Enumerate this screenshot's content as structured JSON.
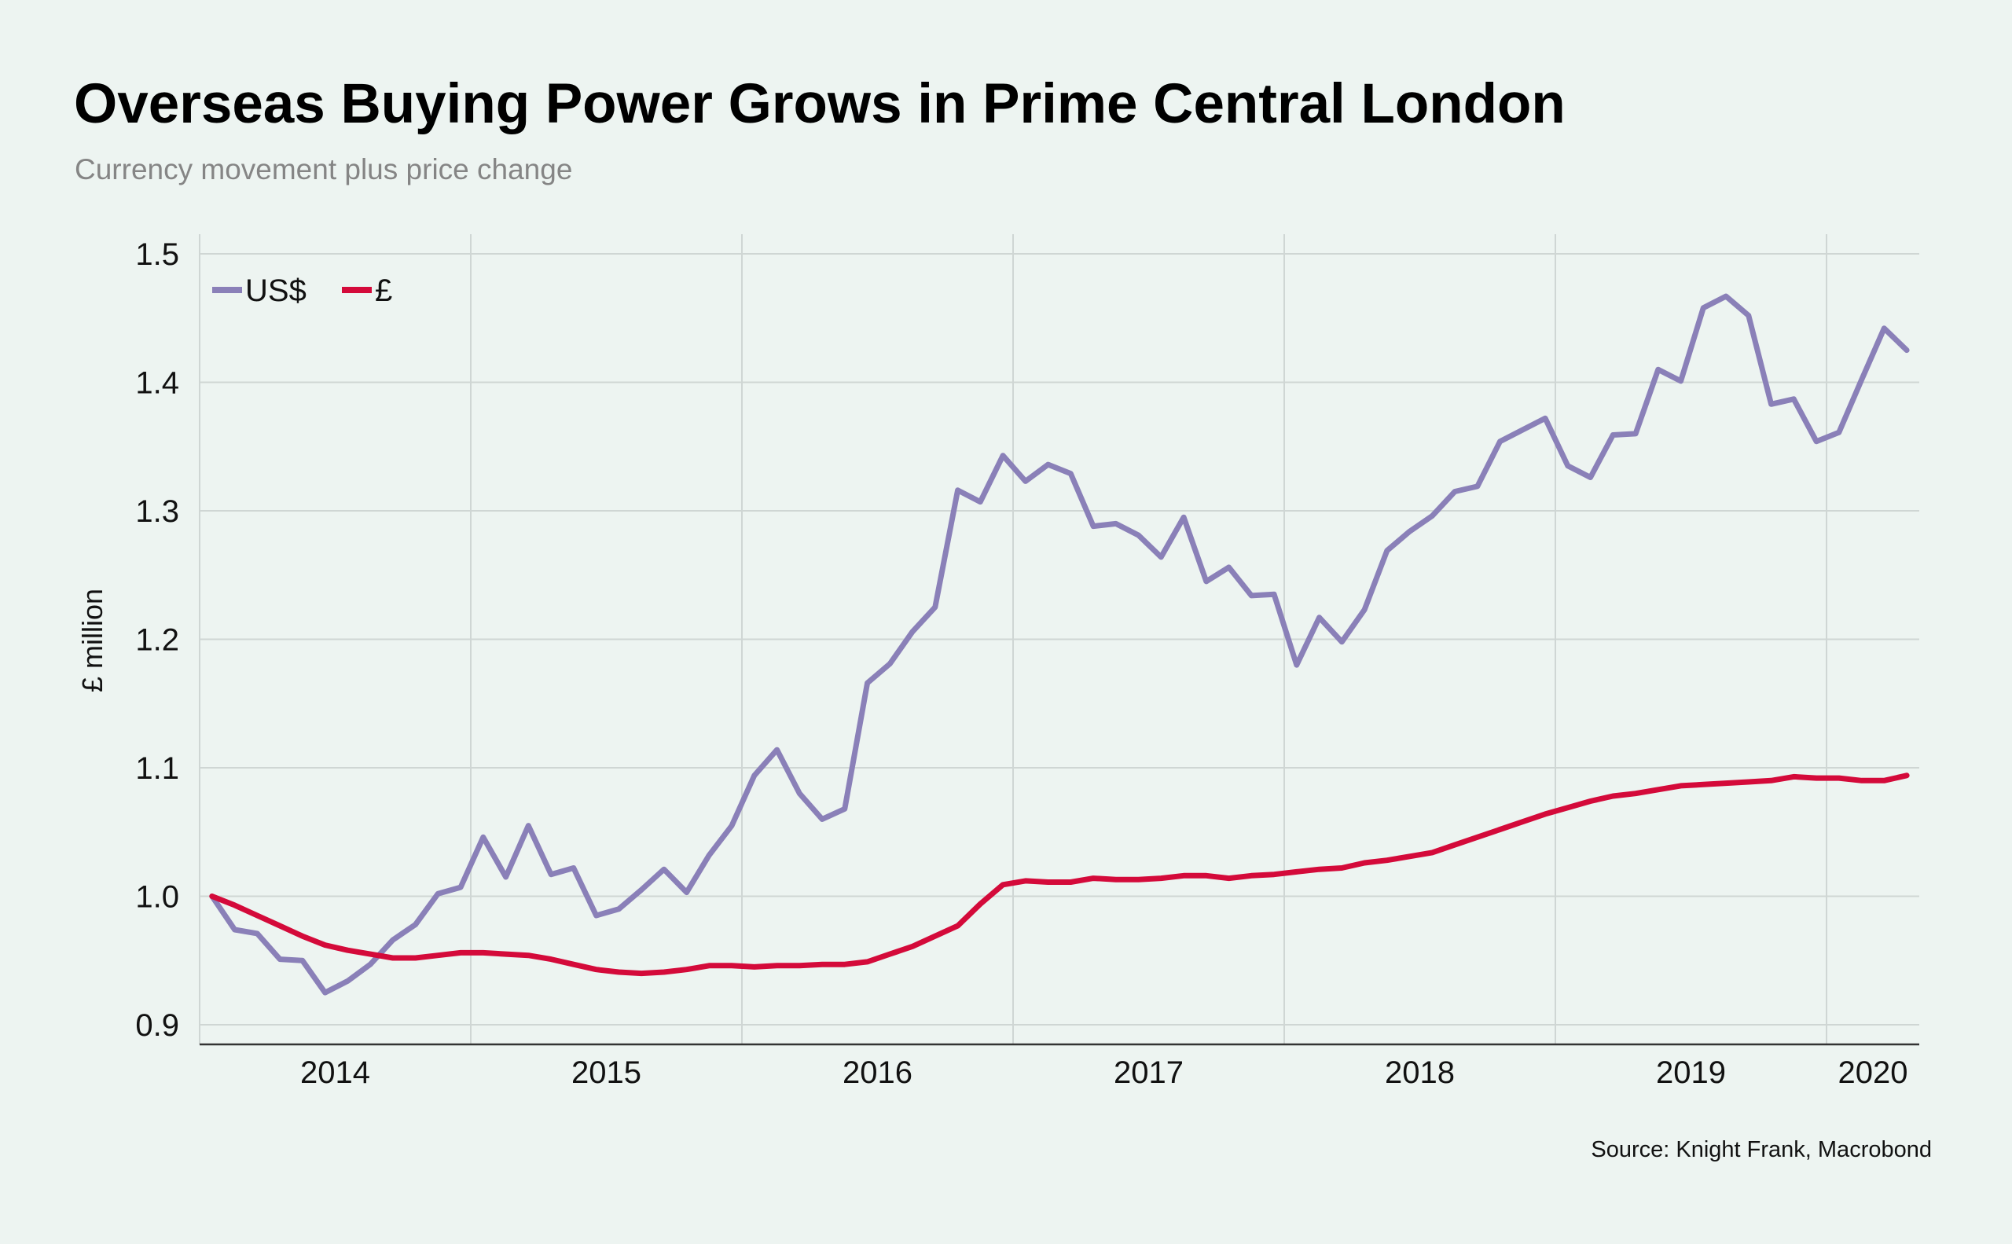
{
  "chart_data": {
    "type": "line",
    "title": "Overseas Buying Power Grows in Prime Central London",
    "subtitle": "Currency movement plus price change",
    "source": "Source: Knight Frank, Macrobond",
    "xlabel": "",
    "ylabel": "£ million",
    "ylim": [
      0.9,
      1.5
    ],
    "yticks": [
      0.9,
      1.0,
      1.1,
      1.2,
      1.3,
      1.4,
      1.5
    ],
    "ytick_labels": [
      "0.9",
      "1.0",
      "1.1",
      "1.2",
      "1.3",
      "1.4",
      "1.5"
    ],
    "x_start": "2014-01",
    "x_frequency": "monthly",
    "xtick_labels": [
      "2014",
      "2015",
      "2016",
      "2017",
      "2018",
      "2019",
      "2020"
    ],
    "grid": true,
    "legend_position": "top-left",
    "series": [
      {
        "name": "US$",
        "color": "#8a80b8",
        "values": [
          1.0,
          0.974,
          0.971,
          0.951,
          0.95,
          0.925,
          0.934,
          0.947,
          0.966,
          0.978,
          1.002,
          1.007,
          1.046,
          1.015,
          1.055,
          1.017,
          1.022,
          0.985,
          0.99,
          1.005,
          1.021,
          1.003,
          1.032,
          1.055,
          1.094,
          1.114,
          1.08,
          1.06,
          1.068,
          1.166,
          1.181,
          1.206,
          1.225,
          1.316,
          1.307,
          1.343,
          1.323,
          1.336,
          1.329,
          1.288,
          1.29,
          1.281,
          1.264,
          1.295,
          1.245,
          1.256,
          1.234,
          1.235,
          1.18,
          1.217,
          1.198,
          1.223,
          1.269,
          1.284,
          1.296,
          1.315,
          1.319,
          1.354,
          1.363,
          1.372,
          1.335,
          1.326,
          1.359,
          1.36,
          1.41,
          1.401,
          1.458,
          1.467,
          1.452,
          1.383,
          1.387,
          1.354,
          1.361,
          1.402,
          1.442,
          1.425
        ]
      },
      {
        "name": "£",
        "color": "#d40a3a",
        "values": [
          1.0,
          0.993,
          0.985,
          0.977,
          0.969,
          0.962,
          0.958,
          0.955,
          0.952,
          0.952,
          0.954,
          0.956,
          0.956,
          0.955,
          0.954,
          0.951,
          0.947,
          0.943,
          0.941,
          0.94,
          0.941,
          0.943,
          0.946,
          0.946,
          0.945,
          0.946,
          0.946,
          0.947,
          0.947,
          0.949,
          0.955,
          0.961,
          0.969,
          0.977,
          0.994,
          1.009,
          1.012,
          1.011,
          1.011,
          1.014,
          1.013,
          1.013,
          1.014,
          1.016,
          1.016,
          1.014,
          1.016,
          1.017,
          1.019,
          1.021,
          1.022,
          1.026,
          1.028,
          1.031,
          1.034,
          1.04,
          1.046,
          1.052,
          1.058,
          1.064,
          1.069,
          1.074,
          1.078,
          1.08,
          1.083,
          1.086,
          1.087,
          1.088,
          1.089,
          1.09,
          1.093,
          1.092,
          1.092,
          1.09,
          1.09,
          1.094
        ]
      }
    ]
  }
}
